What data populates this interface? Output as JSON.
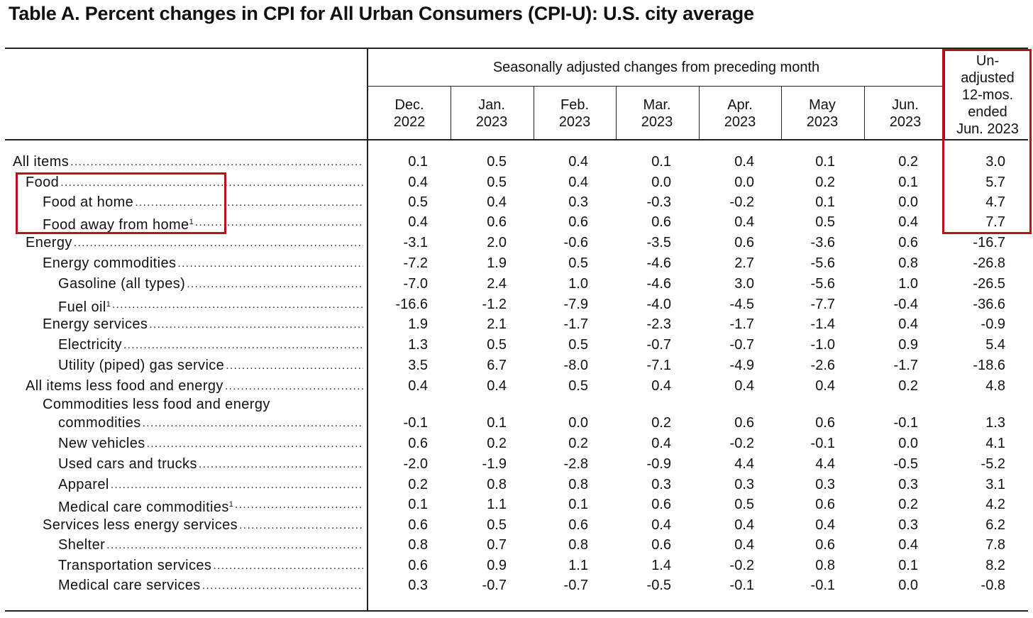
{
  "title": "Table A. Percent changes in CPI for All Urban Consumers (CPI-U): U.S. city average",
  "header": {
    "group_label": "Seasonally adjusted changes from preceding month",
    "months": [
      {
        "month": "Dec.",
        "year": "2022"
      },
      {
        "month": "Jan.",
        "year": "2023"
      },
      {
        "month": "Feb.",
        "year": "2023"
      },
      {
        "month": "Mar.",
        "year": "2023"
      },
      {
        "month": "Apr.",
        "year": "2023"
      },
      {
        "month": "May",
        "year": "2023"
      },
      {
        "month": "Jun.",
        "year": "2023"
      }
    ],
    "unadjusted_lines": [
      "Un-",
      "adjusted",
      "12-mos.",
      "ended",
      "Jun. 2023"
    ]
  },
  "rows": [
    {
      "label": "All  items",
      "indent": 0,
      "values": [
        "0.1",
        "0.5",
        "0.4",
        "0.1",
        "0.4",
        "0.1",
        "0.2",
        "3.0"
      ]
    },
    {
      "label": "Food",
      "indent": 1,
      "values": [
        "0.4",
        "0.5",
        "0.4",
        "0.0",
        "0.0",
        "0.2",
        "0.1",
        "5.7"
      ]
    },
    {
      "label": "Food at home",
      "indent": 2,
      "values": [
        "0.5",
        "0.4",
        "0.3",
        "-0.3",
        "-0.2",
        "0.1",
        "0.0",
        "4.7"
      ]
    },
    {
      "label": "Food away from home",
      "footnote": "1",
      "indent": 2,
      "values": [
        "0.4",
        "0.6",
        "0.6",
        "0.6",
        "0.4",
        "0.5",
        "0.4",
        "7.7"
      ]
    },
    {
      "label": "Energy",
      "indent": 1,
      "values": [
        "-3.1",
        "2.0",
        "-0.6",
        "-3.5",
        "0.6",
        "-3.6",
        "0.6",
        "-16.7"
      ]
    },
    {
      "label": "Energy commodities",
      "indent": 2,
      "values": [
        "-7.2",
        "1.9",
        "0.5",
        "-4.6",
        "2.7",
        "-5.6",
        "0.8",
        "-26.8"
      ]
    },
    {
      "label": "Gasoline (all types)",
      "indent": 3,
      "values": [
        "-7.0",
        "2.4",
        "1.0",
        "-4.6",
        "3.0",
        "-5.6",
        "1.0",
        "-26.5"
      ]
    },
    {
      "label": "Fuel oil",
      "footnote": "1",
      "indent": 3,
      "values": [
        "-16.6",
        "-1.2",
        "-7.9",
        "-4.0",
        "-4.5",
        "-7.7",
        "-0.4",
        "-36.6"
      ]
    },
    {
      "label": "Energy services",
      "indent": 2,
      "values": [
        "1.9",
        "2.1",
        "-1.7",
        "-2.3",
        "-1.7",
        "-1.4",
        "0.4",
        "-0.9"
      ]
    },
    {
      "label": "Electricity",
      "indent": 3,
      "values": [
        "1.3",
        "0.5",
        "0.5",
        "-0.7",
        "-0.7",
        "-1.0",
        "0.9",
        "5.4"
      ]
    },
    {
      "label": "Utility (piped) gas service",
      "indent": 3,
      "values": [
        "3.5",
        "6.7",
        "-8.0",
        "-7.1",
        "-4.9",
        "-2.6",
        "-1.7",
        "-18.6"
      ]
    },
    {
      "label": "All items less food and energy",
      "indent": 1,
      "values": [
        "0.4",
        "0.4",
        "0.5",
        "0.4",
        "0.4",
        "0.4",
        "0.2",
        "4.8"
      ]
    },
    {
      "label": "Commodities less food and energy",
      "label2": "commodities",
      "indent": 2,
      "values": [
        "-0.1",
        "0.1",
        "0.0",
        "0.2",
        "0.6",
        "0.6",
        "-0.1",
        "1.3"
      ]
    },
    {
      "label": "New vehicles",
      "indent": 3,
      "values": [
        "0.6",
        "0.2",
        "0.2",
        "0.4",
        "-0.2",
        "-0.1",
        "0.0",
        "4.1"
      ]
    },
    {
      "label": "Used cars and trucks",
      "indent": 3,
      "values": [
        "-2.0",
        "-1.9",
        "-2.8",
        "-0.9",
        "4.4",
        "4.4",
        "-0.5",
        "-5.2"
      ]
    },
    {
      "label": "Apparel",
      "indent": 3,
      "values": [
        "0.2",
        "0.8",
        "0.8",
        "0.3",
        "0.3",
        "0.3",
        "0.3",
        "3.1"
      ]
    },
    {
      "label": "Medical  care  commodities",
      "footnote": "1",
      "indent": 3,
      "values": [
        "0.1",
        "1.1",
        "0.1",
        "0.6",
        "0.5",
        "0.6",
        "0.2",
        "4.2"
      ]
    },
    {
      "label": "Services less energy services",
      "indent": 2,
      "values": [
        "0.6",
        "0.5",
        "0.6",
        "0.4",
        "0.4",
        "0.4",
        "0.3",
        "6.2"
      ]
    },
    {
      "label": "Shelter",
      "indent": 3,
      "values": [
        "0.8",
        "0.7",
        "0.8",
        "0.6",
        "0.4",
        "0.6",
        "0.4",
        "7.8"
      ]
    },
    {
      "label": "Transportation services",
      "indent": 3,
      "values": [
        "0.6",
        "0.9",
        "1.1",
        "1.4",
        "-0.2",
        "0.8",
        "0.1",
        "8.2"
      ]
    },
    {
      "label": "Medical care services",
      "indent": 3,
      "values": [
        "0.3",
        "-0.7",
        "-0.7",
        "-0.5",
        "-0.1",
        "-0.1",
        "0.0",
        "-0.8"
      ]
    }
  ],
  "highlight_color": "#b3151b"
}
